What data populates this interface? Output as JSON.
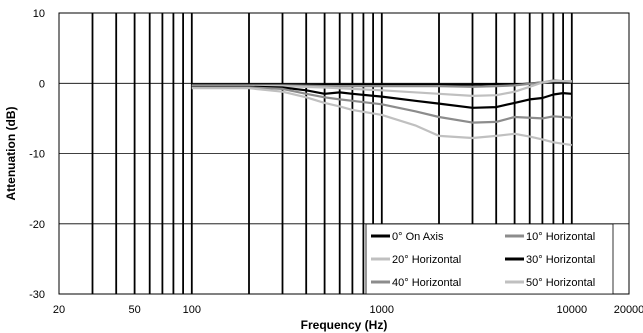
{
  "chart_data": {
    "type": "line",
    "xlabel": "Frequency (Hz)",
    "ylabel": "Attenuation (dB)",
    "x_scale": "log",
    "xlim": [
      20,
      20000
    ],
    "ylim": [
      -30,
      10
    ],
    "x_tick_labels": [
      "20",
      "50",
      "100",
      "1000",
      "10000",
      "20000"
    ],
    "x_tick_values": [
      20,
      50,
      100,
      1000,
      10000,
      20000
    ],
    "y_tick_values": [
      10,
      0,
      -10,
      -20,
      -30
    ],
    "y_tick_labels": [
      "10",
      "0",
      "-10",
      "-20",
      "-30"
    ],
    "vertical_gridlines": [
      30,
      40,
      50,
      60,
      70,
      80,
      90,
      100,
      200,
      300,
      400,
      500,
      600,
      700,
      800,
      900,
      1000,
      2000,
      3000,
      4000,
      5000,
      6000,
      7000,
      8000,
      9000,
      10000
    ],
    "horizontal_gridlines": [
      10,
      0,
      -10,
      -20,
      -30
    ],
    "legend_position": "bottom-right",
    "series": [
      {
        "name": "0° On Axis",
        "color": "#000000",
        "x": [
          100,
          200,
          300,
          500,
          700,
          1000,
          2000,
          3000,
          4000,
          5000,
          7000,
          10000
        ],
        "y": [
          -0.2,
          -0.2,
          -0.2,
          -0.2,
          -0.2,
          -0.2,
          -0.2,
          -0.2,
          -0.1,
          -0.2,
          0.1,
          0.2
        ]
      },
      {
        "name": "10° Horizontal",
        "color": "#8c8c8c",
        "x": [
          100,
          200,
          300,
          500,
          700,
          1000,
          2000,
          3000,
          4000,
          5000,
          7000,
          8000,
          10000
        ],
        "y": [
          -0.3,
          -0.3,
          -0.3,
          -0.4,
          -0.4,
          -0.4,
          -0.4,
          -0.5,
          -0.4,
          -0.3,
          0.1,
          0.4,
          0.2
        ]
      },
      {
        "name": "20° Horizontal",
        "color": "#c0c0c0",
        "x": [
          100,
          200,
          300,
          500,
          700,
          1000,
          2000,
          3000,
          4000,
          5000,
          6000,
          7000,
          8000,
          10000
        ],
        "y": [
          -0.4,
          -0.4,
          -0.4,
          -0.6,
          -0.8,
          -1.0,
          -1.5,
          -1.8,
          -1.7,
          -1.2,
          -0.5,
          0.1,
          0.3,
          0.3
        ]
      },
      {
        "name": "30° Horizontal",
        "color": "#000000",
        "x": [
          100,
          200,
          300,
          400,
          500,
          600,
          700,
          1000,
          1500,
          2000,
          3000,
          4000,
          5000,
          6000,
          7000,
          8000,
          9000,
          10000
        ],
        "y": [
          -0.5,
          -0.5,
          -0.6,
          -1.0,
          -1.5,
          -1.3,
          -1.5,
          -1.9,
          -2.5,
          -2.9,
          -3.5,
          -3.4,
          -2.8,
          -2.3,
          -2.1,
          -1.6,
          -1.4,
          -1.5
        ]
      },
      {
        "name": "40° Horizontal",
        "color": "#8c8c8c",
        "x": [
          100,
          200,
          300,
          400,
          500,
          600,
          700,
          1000,
          1500,
          2000,
          3000,
          4000,
          5000,
          7000,
          8000,
          10000
        ],
        "y": [
          -0.6,
          -0.6,
          -0.8,
          -1.5,
          -2.0,
          -2.3,
          -2.5,
          -3.0,
          -4.0,
          -4.8,
          -5.6,
          -5.5,
          -4.8,
          -5.0,
          -4.7,
          -4.9
        ]
      },
      {
        "name": "50° Horizontal",
        "color": "#c0c0c0",
        "x": [
          100,
          200,
          300,
          400,
          500,
          600,
          700,
          1000,
          1500,
          2000,
          3000,
          4000,
          5000,
          6000,
          7000,
          8000,
          10000
        ],
        "y": [
          -0.7,
          -0.7,
          -1.2,
          -2.0,
          -2.8,
          -3.3,
          -3.8,
          -4.5,
          -6.0,
          -7.5,
          -7.8,
          -7.5,
          -7.2,
          -7.6,
          -8.0,
          -8.4,
          -8.8
        ]
      }
    ]
  }
}
